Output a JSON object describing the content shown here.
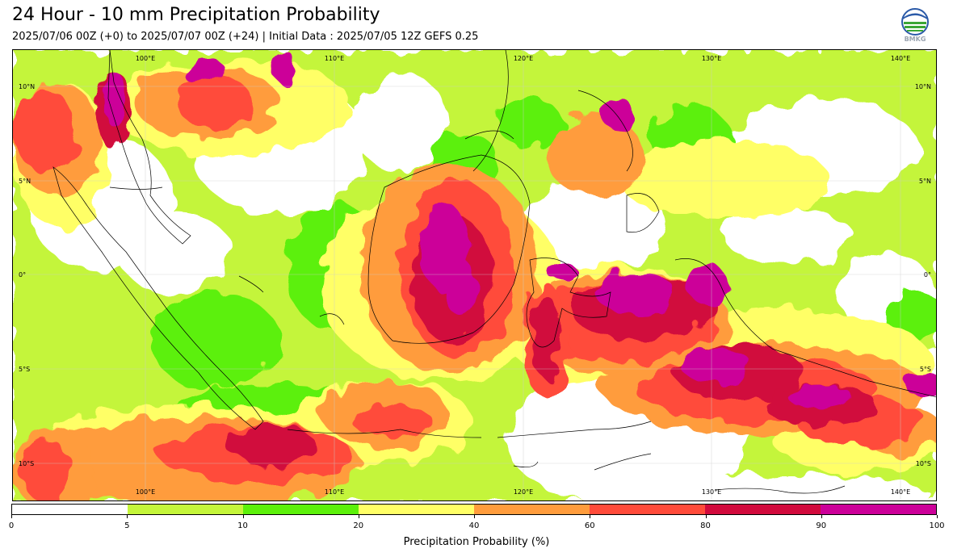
{
  "header": {
    "title": "24 Hour - 10 mm Precipitation Probability",
    "subtitle": "2025/07/06 00Z (+0) to 2025/07/07 00Z (+24) | Initial Data : 2025/07/05 12Z GEFS 0.25",
    "logo_text": "BMKG"
  },
  "map": {
    "lon_labels_top": [
      "100°E",
      "110°E",
      "120°E",
      "130°E",
      "140°E"
    ],
    "lon_labels_bottom": [
      "100°E",
      "110°E",
      "120°E",
      "130°E",
      "140°E"
    ],
    "lat_labels_left": [
      "10°N",
      "5°N",
      "0°",
      "5°S",
      "10°S"
    ],
    "lat_labels_right": [
      "10°N",
      "5°N",
      "0°",
      "5°S",
      "10°S"
    ]
  },
  "colorbar": {
    "label": "Precipitation Probability (%)",
    "ticks": [
      "0",
      "5",
      "10",
      "20",
      "40",
      "60",
      "80",
      "90",
      "100"
    ],
    "colors": [
      "#ffffff",
      "#c4f53a",
      "#5cf00a",
      "#ffff66",
      "#ff9c3c",
      "#ff4b3a",
      "#d10a3c",
      "#cc0099"
    ]
  }
}
